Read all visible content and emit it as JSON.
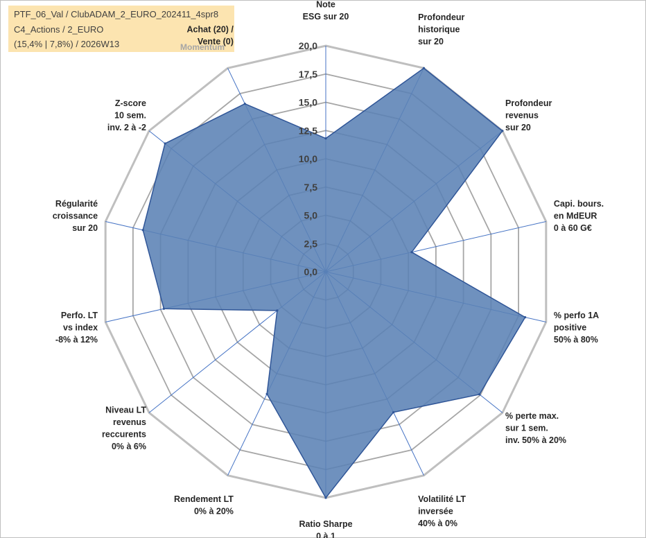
{
  "header": {
    "line1": "PTF_06_Val / ClubADAM_2_EURO_202411_4spr8",
    "line2": "C4_Actions / 2_EURO",
    "line3": "(15,4% | 7,8%) / 2026W13",
    "momentum_label": "Momentum"
  },
  "chart_data": {
    "type": "radar",
    "title": "",
    "rmin": 0,
    "rmax": 20,
    "tick_labels": [
      "0,0",
      "2,5",
      "5,0",
      "7,5",
      "10,0",
      "12,5",
      "15,0",
      "17,5",
      "20,0"
    ],
    "axes": [
      {
        "lines": [
          "Note",
          "ESG sur 20"
        ]
      },
      {
        "lines": [
          "Profondeur",
          "historique",
          "sur 20"
        ]
      },
      {
        "lines": [
          "Profondeur",
          "revenus",
          "sur 20"
        ]
      },
      {
        "lines": [
          "Capi. bours.",
          "en MdEUR",
          "0 à 60 G€"
        ]
      },
      {
        "lines": [
          "% perfo 1A",
          "positive",
          "50% à 80%"
        ]
      },
      {
        "lines": [
          "% perte max.",
          "sur 1 sem.",
          "inv. 50% à 20%"
        ]
      },
      {
        "lines": [
          "Volatilité LT",
          "inversée",
          "40% à 0%"
        ]
      },
      {
        "lines": [
          "Ratio Sharpe",
          "0 à 1"
        ]
      },
      {
        "lines": [
          "Rendement LT",
          "0% à 20%"
        ]
      },
      {
        "lines": [
          "Niveau LT",
          "revenus",
          "reccurents",
          "0% à 6%"
        ]
      },
      {
        "lines": [
          "Perfo. LT",
          "vs index",
          "-8% à 12%"
        ]
      },
      {
        "lines": [
          "Régularité",
          "croissance",
          "sur 20"
        ]
      },
      {
        "lines": [
          "Z-score",
          "10 sem.",
          "inv. 2 à -2"
        ]
      },
      {
        "lines": [
          "Achat (20) /",
          "Vente (0)"
        ]
      }
    ],
    "series": [
      {
        "name": "PTF_06_Val",
        "values": [
          11.8,
          20.0,
          20.0,
          7.8,
          18.1,
          17.4,
          13.8,
          20.0,
          12.0,
          5.5,
          14.7,
          16.6,
          18.2,
          16.5
        ],
        "color": "#5b82b5"
      }
    ],
    "grid_color": "#a6a6a6",
    "outer_color": "#bfbfbf",
    "axis_color": "#4472c4"
  }
}
